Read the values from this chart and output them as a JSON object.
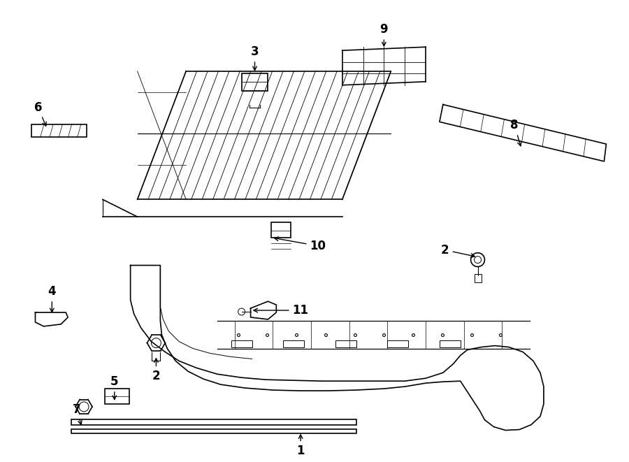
{
  "bg_color": "#ffffff",
  "line_color": "#000000",
  "fig_width": 9.0,
  "fig_height": 6.61
}
